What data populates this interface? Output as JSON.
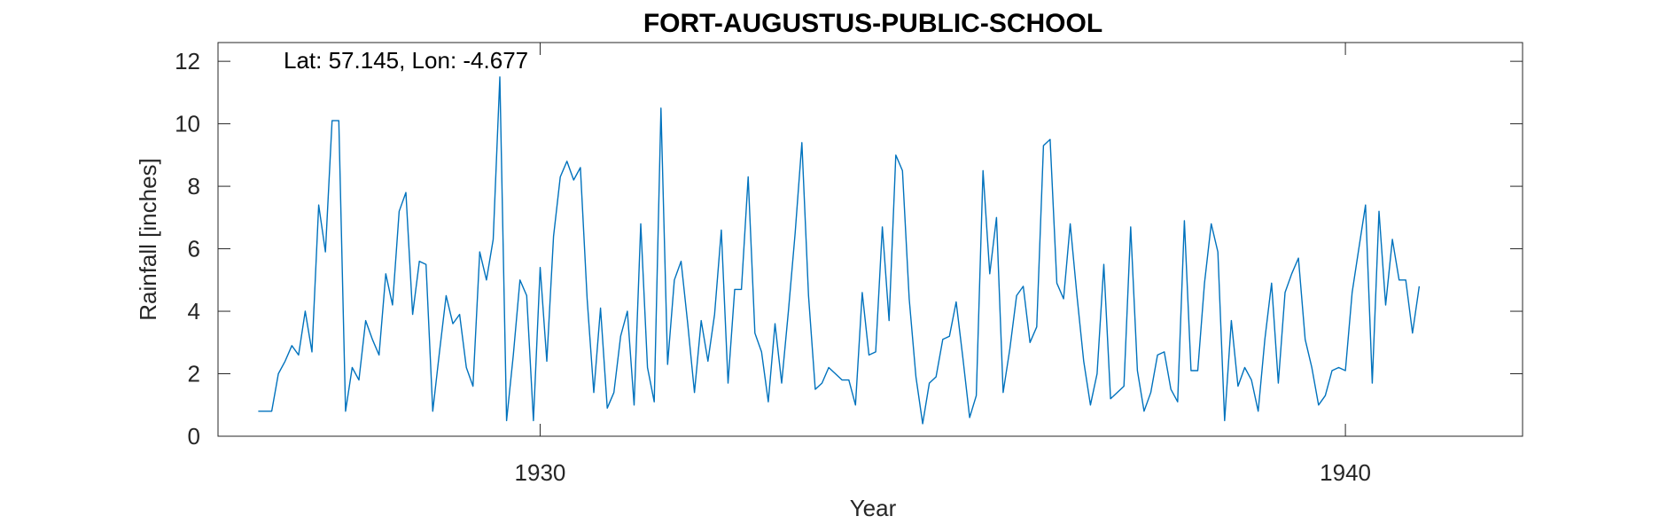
{
  "chart_data": {
    "type": "line",
    "title": "FORT-AUGUSTUS-PUBLIC-SCHOOL",
    "annotation": "Lat: 57.145, Lon: -4.677",
    "xlabel": "Year",
    "ylabel": "Rainfall [inches]",
    "xlim": [
      1926.0,
      1942.2
    ],
    "ylim": [
      0,
      12.6
    ],
    "xticks": [
      1930,
      1940
    ],
    "yticks": [
      0,
      2,
      4,
      6,
      8,
      10,
      12
    ],
    "grid": false,
    "line_color": "#0072BD",
    "series": [
      {
        "x_start": 1926.5,
        "x_step": 0.0833333,
        "values": [
          0.8,
          0.8,
          0.8,
          2.0,
          2.4,
          2.9,
          2.6,
          4.0,
          2.7,
          7.4,
          5.9,
          10.1,
          10.1,
          0.8,
          2.2,
          1.8,
          3.7,
          3.1,
          2.6,
          5.2,
          4.2,
          7.2,
          7.8,
          3.9,
          5.6,
          5.5,
          0.8,
          2.7,
          4.5,
          3.6,
          3.9,
          2.2,
          1.6,
          5.9,
          5.0,
          6.3,
          11.5,
          0.5,
          2.6,
          5.0,
          4.5,
          0.5,
          5.4,
          2.4,
          6.4,
          8.3,
          8.8,
          8.2,
          8.6,
          4.4,
          1.4,
          4.1,
          0.9,
          1.4,
          3.2,
          4.0,
          1.0,
          6.8,
          2.2,
          1.1,
          10.5,
          2.3,
          5.0,
          5.6,
          3.6,
          1.4,
          3.7,
          2.4,
          3.9,
          6.6,
          1.7,
          4.7,
          4.7,
          8.3,
          3.3,
          2.7,
          1.1,
          3.6,
          1.7,
          4.0,
          6.5,
          9.4,
          4.5,
          1.5,
          1.7,
          2.2,
          2.0,
          1.8,
          1.8,
          1.0,
          4.6,
          2.6,
          2.7,
          6.7,
          3.7,
          9.0,
          8.5,
          4.4,
          1.9,
          0.4,
          1.7,
          1.9,
          3.1,
          3.2,
          4.3,
          2.5,
          0.6,
          1.3,
          8.5,
          5.2,
          7.0,
          1.4,
          2.8,
          4.5,
          4.8,
          3.0,
          3.5,
          9.3,
          9.5,
          4.9,
          4.4,
          6.8,
          4.5,
          2.4,
          1.0,
          2.0,
          5.5,
          1.2,
          1.4,
          1.6,
          6.7,
          2.1,
          0.8,
          1.4,
          2.6,
          2.7,
          1.5,
          1.1,
          6.9,
          2.1,
          2.1,
          4.9,
          6.8,
          5.9,
          0.5,
          3.7,
          1.6,
          2.2,
          1.8,
          0.8,
          3.1,
          4.9,
          1.7,
          4.6,
          5.2,
          5.7,
          3.1,
          2.2,
          1.0,
          1.3,
          2.1,
          2.2,
          2.1,
          4.6,
          6.0,
          7.4,
          1.7,
          7.2,
          4.2,
          6.3,
          5.0,
          5.0,
          3.3,
          4.8
        ]
      }
    ]
  }
}
